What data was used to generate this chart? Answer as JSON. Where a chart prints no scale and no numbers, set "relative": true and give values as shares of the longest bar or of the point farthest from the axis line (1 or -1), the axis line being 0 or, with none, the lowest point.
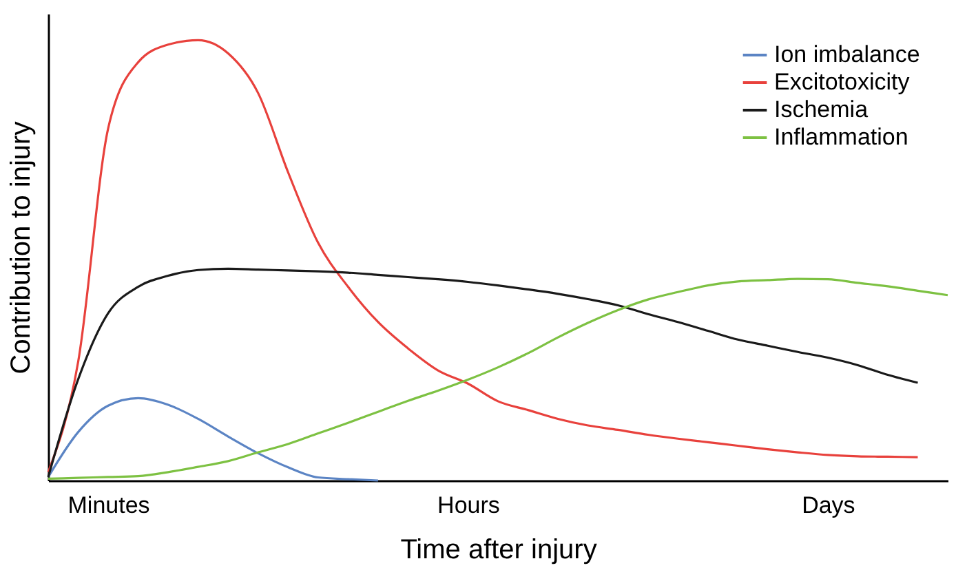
{
  "chart_data": {
    "type": "line",
    "relative": true,
    "xlabel": "Time after injury",
    "ylabel": "Contribution to injury",
    "categories": [
      null,
      null,
      "Minutes",
      null,
      null,
      null,
      null,
      null,
      null,
      null,
      null,
      null,
      null,
      null,
      "Hours",
      null,
      null,
      null,
      null,
      null,
      null,
      null,
      null,
      null,
      null,
      null,
      "Days",
      null,
      null,
      null,
      null
    ],
    "legend": "top right",
    "grid": false,
    "marker": "none",
    "line_style": "solid",
    "series": [
      {
        "name": "Ion imbalance",
        "color": "#5b84c4",
        "values": [
          0.008,
          0.11,
          0.17,
          0.187,
          0.172,
          0.14,
          0.1,
          0.062,
          0.03,
          0.007,
          0.003,
          0,
          null,
          null,
          null,
          null,
          null,
          null,
          null,
          null,
          null,
          null,
          null,
          null,
          null,
          null,
          null,
          null,
          null,
          null,
          null
        ]
      },
      {
        "name": "Excitotoxicity",
        "color": "#e8413c",
        "values": [
          0.019,
          0.27,
          0.8,
          0.95,
          0.99,
          1,
          0.97,
          0.88,
          0.7,
          0.54,
          0.44,
          0.36,
          0.3,
          0.25,
          0.22,
          0.18,
          0.16,
          0.14,
          0.125,
          0.115,
          0.104,
          0.095,
          0.087,
          0.079,
          0.071,
          0.064,
          0.058,
          0.055,
          0.054,
          0.053,
          null
        ]
      },
      {
        "name": "Ischemia",
        "color": "#1a1a1a",
        "values": [
          0.008,
          0.23,
          0.38,
          0.44,
          0.465,
          0.478,
          0.481,
          0.479,
          0.477,
          0.475,
          0.472,
          0.467,
          0.462,
          0.457,
          0.451,
          0.443,
          0.434,
          0.424,
          0.412,
          0.398,
          0.378,
          0.36,
          0.34,
          0.32,
          0.306,
          0.292,
          0.279,
          0.262,
          0.24,
          0.222,
          null
        ]
      },
      {
        "name": "Inflammation",
        "color": "#7dc142",
        "values": [
          0.004,
          0.006,
          0.008,
          0.01,
          0.019,
          0.031,
          0.044,
          0.064,
          0.083,
          0.107,
          0.131,
          0.156,
          0.181,
          0.204,
          0.229,
          0.257,
          0.289,
          0.325,
          0.358,
          0.387,
          0.411,
          0.428,
          0.443,
          0.452,
          0.455,
          0.458,
          0.457,
          0.449,
          0.441,
          0.431,
          0.421
        ]
      }
    ]
  }
}
